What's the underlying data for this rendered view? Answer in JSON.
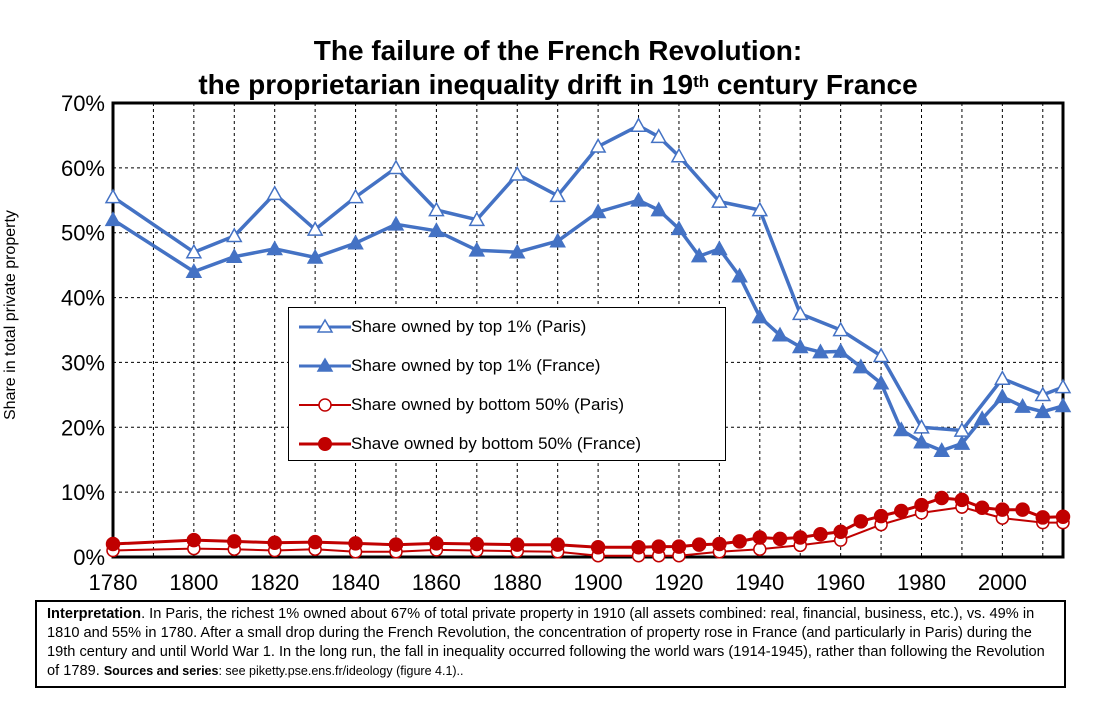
{
  "title": {
    "line1": "The failure of the French Revolution:",
    "line2_pre": "the proprietarian inequality drift in 19",
    "line2_sup": "th",
    "line2_post": " century France"
  },
  "chart_data": {
    "type": "line",
    "ylabel": "Share in total private property",
    "xlabel": "",
    "xlim": [
      1780,
      2015
    ],
    "ylim": [
      0,
      0.7
    ],
    "xticks": [
      1780,
      1800,
      1820,
      1840,
      1860,
      1880,
      1900,
      1920,
      1940,
      1960,
      1980,
      2000
    ],
    "yticks": [
      0,
      0.1,
      0.2,
      0.3,
      0.4,
      0.5,
      0.6,
      0.7
    ],
    "ytick_labels": [
      "0%",
      "10%",
      "20%",
      "30%",
      "40%",
      "50%",
      "60%",
      "70%"
    ],
    "grid": true,
    "legend_position": "center",
    "series": [
      {
        "name": "Share owned by top 1% (Paris)",
        "color": "#4472C4",
        "marker": "triangle-open",
        "x": [
          1780,
          1800,
          1810,
          1820,
          1830,
          1840,
          1850,
          1860,
          1870,
          1880,
          1890,
          1900,
          1910,
          1915,
          1920,
          1930,
          1940,
          1950,
          1960,
          1970,
          1980,
          1990,
          2000,
          2010,
          2015
        ],
        "values": [
          0.555,
          0.47,
          0.495,
          0.56,
          0.505,
          0.555,
          0.6,
          0.535,
          0.52,
          0.59,
          0.557,
          0.633,
          0.665,
          0.648,
          0.618,
          0.548,
          0.535,
          0.375,
          0.35,
          0.31,
          0.2,
          0.195,
          0.275,
          0.25,
          0.262
        ]
      },
      {
        "name": "Share owned by top 1% (France)",
        "color": "#4472C4",
        "marker": "triangle-filled",
        "x": [
          1780,
          1800,
          1810,
          1820,
          1830,
          1840,
          1850,
          1860,
          1870,
          1880,
          1890,
          1900,
          1910,
          1915,
          1920,
          1925,
          1930,
          1935,
          1940,
          1945,
          1950,
          1955,
          1960,
          1965,
          1970,
          1975,
          1980,
          1985,
          1990,
          1995,
          2000,
          2005,
          2010,
          2015
        ],
        "values": [
          0.52,
          0.44,
          0.463,
          0.475,
          0.462,
          0.484,
          0.513,
          0.503,
          0.473,
          0.47,
          0.487,
          0.532,
          0.55,
          0.535,
          0.506,
          0.464,
          0.475,
          0.433,
          0.37,
          0.342,
          0.324,
          0.316,
          0.317,
          0.293,
          0.268,
          0.196,
          0.177,
          0.164,
          0.175,
          0.213,
          0.247,
          0.232,
          0.224,
          0.233
        ]
      },
      {
        "name": "Share owned by bottom 50% (Paris)",
        "color": "#C00000",
        "marker": "circle-open",
        "x": [
          1780,
          1800,
          1810,
          1820,
          1830,
          1840,
          1850,
          1860,
          1870,
          1880,
          1890,
          1900,
          1910,
          1915,
          1920,
          1930,
          1940,
          1950,
          1960,
          1970,
          1980,
          1990,
          2000,
          2010,
          2015
        ],
        "values": [
          0.01,
          0.013,
          0.012,
          0.01,
          0.012,
          0.008,
          0.008,
          0.011,
          0.01,
          0.009,
          0.008,
          0.002,
          0.002,
          0.002,
          0.002,
          0.008,
          0.012,
          0.018,
          0.026,
          0.05,
          0.068,
          0.077,
          0.06,
          0.053,
          0.053
        ]
      },
      {
        "name": "Shave owned by bottom 50% (France)",
        "color": "#C00000",
        "marker": "circle-filled",
        "x": [
          1780,
          1800,
          1810,
          1820,
          1830,
          1840,
          1850,
          1860,
          1870,
          1880,
          1890,
          1900,
          1910,
          1915,
          1920,
          1925,
          1930,
          1935,
          1940,
          1945,
          1950,
          1955,
          1960,
          1965,
          1970,
          1975,
          1980,
          1985,
          1990,
          1995,
          2000,
          2005,
          2010,
          2015
        ],
        "values": [
          0.02,
          0.026,
          0.024,
          0.022,
          0.023,
          0.021,
          0.019,
          0.021,
          0.02,
          0.019,
          0.019,
          0.015,
          0.015,
          0.016,
          0.016,
          0.019,
          0.02,
          0.024,
          0.03,
          0.028,
          0.03,
          0.035,
          0.039,
          0.055,
          0.063,
          0.071,
          0.08,
          0.091,
          0.088,
          0.076,
          0.073,
          0.073,
          0.061,
          0.062
        ]
      }
    ]
  },
  "note": {
    "label": "Interpretation",
    "text": ". In Paris, the richest 1% owned about 67% of total private property in 1910 (all assets combined: real, financial, business, etc.), vs. 49% in 1810 and 55% in 1780. After a small drop during the French Revolution, the concentration of property rose in France (and particularly in Paris) during the 19th century and until World War 1. In the long run, the fall in inequality occurred following the world wars (1914-1945), rather than following the Revolution of 1789. ",
    "sources_label": "Sources and series",
    "sources_text": ": see piketty.pse.ens.fr/ideology (figure 4.1).."
  }
}
